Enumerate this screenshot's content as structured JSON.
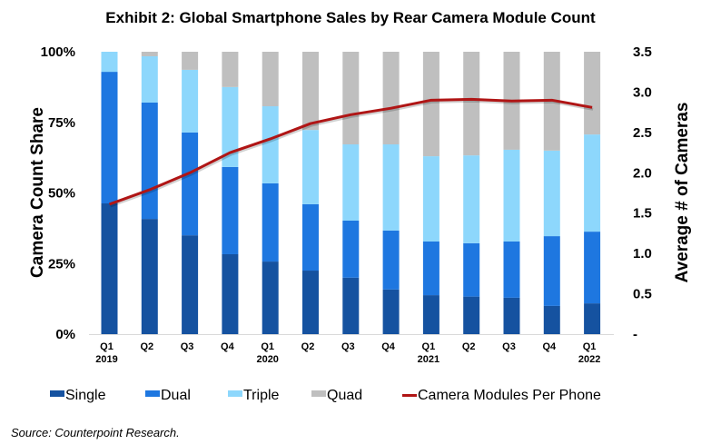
{
  "chart_data": {
    "type": "bar",
    "subtype": "stacked-bar-with-line-secondary-axis",
    "title": "Exhibit 2: Global Smartphone Sales by Rear Camera Module Count",
    "categories": [
      "Q1 2019",
      "Q2 2019",
      "Q3 2019",
      "Q4 2019",
      "Q1 2020",
      "Q2 2020",
      "Q3 2020",
      "Q4 2020",
      "Q1 2021",
      "Q2 2021",
      "Q3 2021",
      "Q4 2021",
      "Q1 2022"
    ],
    "x_tick_labels": [
      {
        "top": "Q1",
        "bottom": "2019"
      },
      {
        "top": "Q2",
        "bottom": ""
      },
      {
        "top": "Q3",
        "bottom": ""
      },
      {
        "top": "Q4",
        "bottom": ""
      },
      {
        "top": "Q1",
        "bottom": "2020"
      },
      {
        "top": "Q2",
        "bottom": ""
      },
      {
        "top": "Q3",
        "bottom": ""
      },
      {
        "top": "Q4",
        "bottom": ""
      },
      {
        "top": "Q1",
        "bottom": "2021"
      },
      {
        "top": "Q2",
        "bottom": ""
      },
      {
        "top": "Q3",
        "bottom": ""
      },
      {
        "top": "Q4",
        "bottom": ""
      },
      {
        "top": "Q1",
        "bottom": "2022"
      }
    ],
    "series": [
      {
        "name": "Single",
        "axis": "left",
        "kind": "stacked-bar",
        "color": "#1552A0",
        "values": [
          46.3,
          40.8,
          35.0,
          28.3,
          25.7,
          22.5,
          20.0,
          15.8,
          13.8,
          13.3,
          12.9,
          10.0,
          10.9
        ]
      },
      {
        "name": "Dual",
        "axis": "left",
        "kind": "stacked-bar",
        "color": "#1E77E0",
        "values": [
          46.6,
          41.2,
          36.4,
          30.9,
          27.7,
          23.5,
          20.2,
          20.9,
          19.0,
          18.9,
          19.9,
          24.7,
          25.4
        ]
      },
      {
        "name": "Triple",
        "axis": "left",
        "kind": "stacked-bar",
        "color": "#8DD7FC",
        "values": [
          7.1,
          16.4,
          22.2,
          28.3,
          27.3,
          26.3,
          27.0,
          30.5,
          30.2,
          31.1,
          32.5,
          30.3,
          34.4
        ]
      },
      {
        "name": "Quad",
        "axis": "left",
        "kind": "stacked-bar",
        "color": "#BFBFBF",
        "values": [
          0.0,
          1.6,
          6.4,
          12.5,
          19.3,
          27.7,
          32.8,
          32.8,
          37.0,
          36.7,
          34.7,
          35.0,
          29.3
        ]
      },
      {
        "name": "Camera Modules Per Phone",
        "axis": "right",
        "kind": "line",
        "color": "#B01515",
        "values": [
          1.61,
          1.79,
          2.0,
          2.25,
          2.42,
          2.61,
          2.72,
          2.8,
          2.9,
          2.91,
          2.89,
          2.9,
          2.81
        ]
      }
    ],
    "ylabel": "Camera Count Share",
    "ylim": [
      0,
      100
    ],
    "y_ticks": [
      "0%",
      "25%",
      "50%",
      "75%",
      "100%"
    ],
    "y2label": "Average # of Cameras",
    "y2lim": [
      0,
      3.5
    ],
    "y2_ticks": [
      "-",
      "0.5",
      "1.0",
      "1.5",
      "2.0",
      "2.5",
      "3.0",
      "3.5"
    ],
    "grid": false,
    "legend_position": "bottom",
    "legend": [
      "Single",
      "Dual",
      "Triple",
      "Quad",
      "Camera Modules Per Phone"
    ]
  },
  "source_note": "Source: Counterpoint Research."
}
